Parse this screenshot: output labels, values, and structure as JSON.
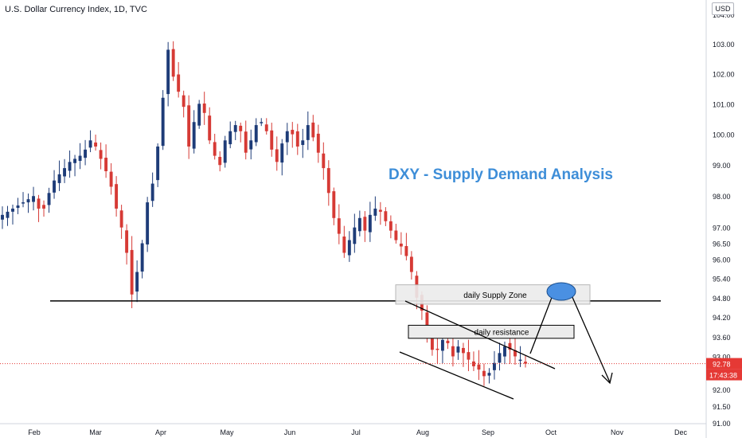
{
  "header": {
    "title": "U.S. Dollar Currency Index, 1D, TVC"
  },
  "currency_button": "USD",
  "annotation_title": "DXY - Supply Demand Analysis",
  "zones": {
    "supply": "daily Supply Zone",
    "resistance": "daily resistance"
  },
  "price_badge": {
    "price": "92.78",
    "countdown": "17:43:38"
  },
  "colors": {
    "up": "#1e3c78",
    "down": "#d63a35",
    "title": "#3e8ed8",
    "badge": "#e53935",
    "zone_fill": "#ececec",
    "circle": "#4a90e2"
  },
  "chart_data": {
    "type": "candlestick",
    "title": "U.S. Dollar Currency Index, 1D, TVC",
    "y_axis": {
      "scale": "log",
      "range": [
        90.7,
        104.5
      ],
      "ticks": [
        "104.00",
        "103.00",
        "102.00",
        "101.00",
        "100.00",
        "99.00",
        "98.00",
        "97.00",
        "96.50",
        "96.00",
        "95.40",
        "94.80",
        "94.20",
        "93.60",
        "93.00",
        "92.40",
        "92.00",
        "91.50",
        "91.00"
      ]
    },
    "x_axis": {
      "ticks": [
        "Feb",
        "Mar",
        "Apr",
        "May",
        "Jun",
        "Jul",
        "Aug",
        "Sep",
        "Oct",
        "Nov",
        "Dec"
      ]
    },
    "last_price": 92.78,
    "horizontal_level": 94.7,
    "supply_zone": [
      94.6,
      95.2
    ],
    "resistance_zone": [
      93.55,
      93.95
    ],
    "series_closes": [
      97.4,
      97.5,
      97.6,
      97.7,
      97.8,
      97.9,
      98.0,
      97.6,
      97.6,
      98.1,
      98.5,
      98.7,
      98.9,
      99.1,
      99.2,
      99.3,
      99.5,
      99.8,
      99.6,
      99.2,
      98.8,
      98.3,
      97.6,
      97.0,
      96.2,
      94.9,
      95.6,
      96.5,
      97.8,
      98.4,
      99.6,
      101.2,
      102.8,
      101.9,
      101.4,
      100.9,
      99.6,
      100.4,
      101.0,
      100.7,
      99.8,
      99.3,
      99.0,
      99.8,
      100.1,
      100.3,
      100.1,
      99.4,
      99.8,
      100.3,
      100.4,
      100.1,
      99.5,
      99.1,
      99.7,
      100.1,
      100.0,
      99.6,
      99.8,
      100.3,
      99.9,
      99.4,
      98.9,
      98.1,
      97.3,
      96.8,
      96.2,
      96.6,
      97.0,
      97.3,
      96.9,
      97.4,
      97.6,
      97.5,
      97.2,
      96.9,
      96.6,
      96.4,
      96.1,
      95.6,
      94.8,
      94.4,
      93.6,
      93.2,
      93.2,
      93.5,
      93.4,
      93.0,
      93.3,
      93.1,
      92.9,
      92.7,
      92.6,
      92.4,
      92.5,
      92.8,
      93.1,
      93.3,
      93.2,
      93.0,
      92.9,
      92.78
    ],
    "projection": [
      [
        94.6,
        94.9
      ],
      [
        94.9,
        92.0
      ]
    ]
  }
}
